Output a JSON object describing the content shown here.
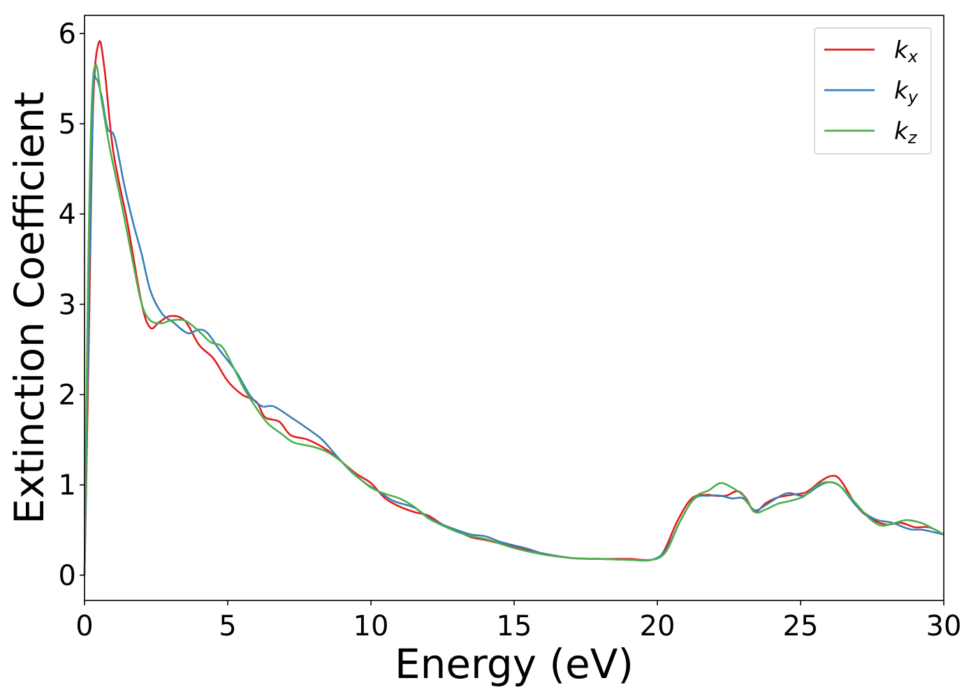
{
  "chart_data": {
    "type": "line",
    "title": "",
    "xlabel": "Energy (eV)",
    "ylabel": "Extinction Coefficient",
    "xlim": [
      0,
      30
    ],
    "ylim": [
      -0.28,
      6.2
    ],
    "xticks": [
      0,
      5,
      10,
      15,
      20,
      25,
      30
    ],
    "yticks": [
      0,
      1,
      2,
      3,
      4,
      5,
      6
    ],
    "grid": false,
    "legend_position": "top-right",
    "series": [
      {
        "name": "k_x",
        "legend_base": "k",
        "legend_sub": "x",
        "color": "#e41a1c",
        "points": [
          [
            0,
            0.0
          ],
          [
            0.15,
            2.6
          ],
          [
            0.3,
            5.2
          ],
          [
            0.5,
            5.9
          ],
          [
            0.7,
            5.6
          ],
          [
            1.0,
            4.7
          ],
          [
            1.5,
            3.9
          ],
          [
            2.0,
            3.0
          ],
          [
            2.3,
            2.74
          ],
          [
            2.6,
            2.8
          ],
          [
            3.0,
            2.87
          ],
          [
            3.5,
            2.82
          ],
          [
            4.0,
            2.55
          ],
          [
            4.5,
            2.4
          ],
          [
            5.0,
            2.15
          ],
          [
            5.5,
            2.0
          ],
          [
            6.0,
            1.92
          ],
          [
            6.3,
            1.75
          ],
          [
            6.8,
            1.7
          ],
          [
            7.2,
            1.55
          ],
          [
            7.8,
            1.5
          ],
          [
            8.5,
            1.38
          ],
          [
            9.0,
            1.25
          ],
          [
            9.5,
            1.12
          ],
          [
            10.0,
            1.02
          ],
          [
            10.5,
            0.85
          ],
          [
            11.0,
            0.76
          ],
          [
            11.5,
            0.7
          ],
          [
            12.0,
            0.66
          ],
          [
            12.5,
            0.56
          ],
          [
            13.0,
            0.49
          ],
          [
            13.5,
            0.42
          ],
          [
            14.0,
            0.39
          ],
          [
            14.5,
            0.35
          ],
          [
            15.0,
            0.31
          ],
          [
            16.0,
            0.24
          ],
          [
            17.0,
            0.19
          ],
          [
            18.0,
            0.18
          ],
          [
            19.0,
            0.18
          ],
          [
            19.8,
            0.17
          ],
          [
            20.2,
            0.25
          ],
          [
            20.7,
            0.6
          ],
          [
            21.2,
            0.85
          ],
          [
            21.7,
            0.89
          ],
          [
            22.0,
            0.88
          ],
          [
            22.4,
            0.88
          ],
          [
            22.8,
            0.93
          ],
          [
            23.1,
            0.85
          ],
          [
            23.4,
            0.7
          ],
          [
            23.8,
            0.8
          ],
          [
            24.2,
            0.86
          ],
          [
            24.7,
            0.89
          ],
          [
            25.2,
            0.92
          ],
          [
            25.7,
            1.04
          ],
          [
            26.1,
            1.1
          ],
          [
            26.4,
            1.05
          ],
          [
            27.0,
            0.75
          ],
          [
            27.5,
            0.62
          ],
          [
            28.0,
            0.56
          ],
          [
            28.5,
            0.58
          ],
          [
            29.0,
            0.53
          ],
          [
            29.5,
            0.53
          ],
          [
            30.0,
            0.45
          ]
        ]
      },
      {
        "name": "k_y",
        "legend_base": "k",
        "legend_sub": "y",
        "color": "#377eb8",
        "points": [
          [
            0,
            0.0
          ],
          [
            0.15,
            3.0
          ],
          [
            0.3,
            5.3
          ],
          [
            0.4,
            5.5
          ],
          [
            0.6,
            5.3
          ],
          [
            0.8,
            4.95
          ],
          [
            1.05,
            4.85
          ],
          [
            1.4,
            4.3
          ],
          [
            1.7,
            3.9
          ],
          [
            2.0,
            3.55
          ],
          [
            2.3,
            3.15
          ],
          [
            2.7,
            2.9
          ],
          [
            3.1,
            2.8
          ],
          [
            3.6,
            2.68
          ],
          [
            4.0,
            2.72
          ],
          [
            4.3,
            2.68
          ],
          [
            4.7,
            2.5
          ],
          [
            5.3,
            2.25
          ],
          [
            5.8,
            1.98
          ],
          [
            6.2,
            1.87
          ],
          [
            6.6,
            1.87
          ],
          [
            7.2,
            1.75
          ],
          [
            7.8,
            1.62
          ],
          [
            8.3,
            1.5
          ],
          [
            8.8,
            1.32
          ],
          [
            9.3,
            1.15
          ],
          [
            9.8,
            1.02
          ],
          [
            10.3,
            0.92
          ],
          [
            10.8,
            0.82
          ],
          [
            11.5,
            0.75
          ],
          [
            12.0,
            0.64
          ],
          [
            12.5,
            0.56
          ],
          [
            13.0,
            0.5
          ],
          [
            13.5,
            0.45
          ],
          [
            14.0,
            0.43
          ],
          [
            14.5,
            0.37
          ],
          [
            15.0,
            0.33
          ],
          [
            15.5,
            0.29
          ],
          [
            16.0,
            0.24
          ],
          [
            17.0,
            0.19
          ],
          [
            18.0,
            0.18
          ],
          [
            19.0,
            0.17
          ],
          [
            19.8,
            0.17
          ],
          [
            20.3,
            0.28
          ],
          [
            20.8,
            0.6
          ],
          [
            21.3,
            0.85
          ],
          [
            21.8,
            0.88
          ],
          [
            22.2,
            0.88
          ],
          [
            22.6,
            0.85
          ],
          [
            23.0,
            0.85
          ],
          [
            23.4,
            0.72
          ],
          [
            23.8,
            0.78
          ],
          [
            24.2,
            0.86
          ],
          [
            24.6,
            0.91
          ],
          [
            25.1,
            0.88
          ],
          [
            25.6,
            0.98
          ],
          [
            26.0,
            1.03
          ],
          [
            26.4,
            0.98
          ],
          [
            27.0,
            0.75
          ],
          [
            27.6,
            0.62
          ],
          [
            28.2,
            0.58
          ],
          [
            28.8,
            0.51
          ],
          [
            29.3,
            0.5
          ],
          [
            30.0,
            0.45
          ]
        ]
      },
      {
        "name": "k_z",
        "legend_base": "k",
        "legend_sub": "z",
        "color": "#4daf4a",
        "points": [
          [
            0,
            0.0
          ],
          [
            0.12,
            3.2
          ],
          [
            0.25,
            5.2
          ],
          [
            0.4,
            5.65
          ],
          [
            0.6,
            5.25
          ],
          [
            0.9,
            4.7
          ],
          [
            1.3,
            4.1
          ],
          [
            1.7,
            3.45
          ],
          [
            2.0,
            3.0
          ],
          [
            2.3,
            2.82
          ],
          [
            2.7,
            2.79
          ],
          [
            3.0,
            2.82
          ],
          [
            3.5,
            2.82
          ],
          [
            4.0,
            2.7
          ],
          [
            4.4,
            2.58
          ],
          [
            4.8,
            2.53
          ],
          [
            5.2,
            2.3
          ],
          [
            5.6,
            2.05
          ],
          [
            6.0,
            1.85
          ],
          [
            6.4,
            1.68
          ],
          [
            6.9,
            1.56
          ],
          [
            7.3,
            1.47
          ],
          [
            8.0,
            1.42
          ],
          [
            8.5,
            1.36
          ],
          [
            9.0,
            1.25
          ],
          [
            9.5,
            1.1
          ],
          [
            10.0,
            0.97
          ],
          [
            10.5,
            0.9
          ],
          [
            11.0,
            0.85
          ],
          [
            11.5,
            0.76
          ],
          [
            12.0,
            0.63
          ],
          [
            12.5,
            0.55
          ],
          [
            13.0,
            0.48
          ],
          [
            13.5,
            0.43
          ],
          [
            14.0,
            0.4
          ],
          [
            14.5,
            0.35
          ],
          [
            15.0,
            0.3
          ],
          [
            16.0,
            0.23
          ],
          [
            17.0,
            0.19
          ],
          [
            18.0,
            0.18
          ],
          [
            19.0,
            0.17
          ],
          [
            19.8,
            0.17
          ],
          [
            20.3,
            0.26
          ],
          [
            20.8,
            0.6
          ],
          [
            21.3,
            0.86
          ],
          [
            21.8,
            0.94
          ],
          [
            22.2,
            1.02
          ],
          [
            22.6,
            0.97
          ],
          [
            23.0,
            0.88
          ],
          [
            23.4,
            0.7
          ],
          [
            23.8,
            0.73
          ],
          [
            24.2,
            0.79
          ],
          [
            24.6,
            0.82
          ],
          [
            25.1,
            0.87
          ],
          [
            25.6,
            1.0
          ],
          [
            26.0,
            1.03
          ],
          [
            26.4,
            0.98
          ],
          [
            27.0,
            0.77
          ],
          [
            27.4,
            0.63
          ],
          [
            27.8,
            0.55
          ],
          [
            28.2,
            0.57
          ],
          [
            28.7,
            0.61
          ],
          [
            29.2,
            0.58
          ],
          [
            29.6,
            0.52
          ],
          [
            30.0,
            0.45
          ]
        ]
      }
    ]
  }
}
